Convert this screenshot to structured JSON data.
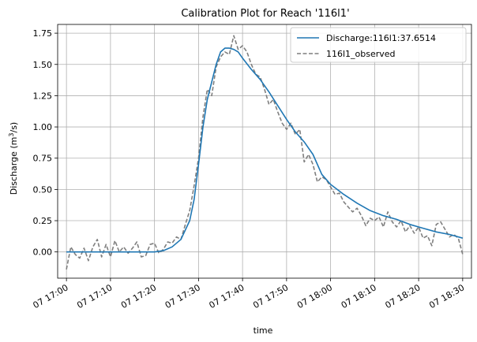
{
  "chart_data": {
    "type": "line",
    "title": "Calibration Plot for Reach '116l1'",
    "xlabel": "time",
    "ylabel_main": "Discharge (m",
    "ylabel_sup": "3",
    "ylabel_tail": "/s)",
    "xlim": [
      "07 16:58",
      "07 18:32"
    ],
    "ylim": [
      -0.21,
      1.82
    ],
    "x_ticks": [
      "07 17:00",
      "07 17:10",
      "07 17:20",
      "07 17:30",
      "07 17:40",
      "07 17:50",
      "07 18:00",
      "07 18:10",
      "07 18:20",
      "07 18:30"
    ],
    "y_ticks": [
      0.0,
      0.25,
      0.5,
      0.75,
      1.0,
      1.25,
      1.5,
      1.75
    ],
    "y_tick_labels": [
      "0.00",
      "0.25",
      "0.50",
      "0.75",
      "1.00",
      "1.25",
      "1.50",
      "1.75"
    ],
    "grid": true,
    "legend_position": "top-right",
    "series": [
      {
        "name": "Discharge:116l1:37.6514",
        "style": "solid",
        "color": "#1f77b4",
        "x": [
          "07 17:00",
          "07 17:05",
          "07 17:10",
          "07 17:15",
          "07 17:20",
          "07 17:22",
          "07 17:24",
          "07 17:26",
          "07 17:28",
          "07 17:29",
          "07 17:30",
          "07 17:31",
          "07 17:32",
          "07 17:33",
          "07 17:34",
          "07 17:35",
          "07 17:36",
          "07 17:37",
          "07 17:38",
          "07 17:39",
          "07 17:40",
          "07 17:42",
          "07 17:44",
          "07 17:46",
          "07 17:48",
          "07 17:50",
          "07 17:52",
          "07 17:54",
          "07 17:56",
          "07 17:58",
          "07 18:00",
          "07 18:03",
          "07 18:06",
          "07 18:09",
          "07 18:12",
          "07 18:15",
          "07 18:18",
          "07 18:21",
          "07 18:24",
          "07 18:27",
          "07 18:30"
        ],
        "y": [
          0.0,
          0.0,
          0.0,
          0.0,
          0.0,
          0.01,
          0.04,
          0.1,
          0.25,
          0.42,
          0.7,
          1.0,
          1.22,
          1.36,
          1.5,
          1.6,
          1.63,
          1.63,
          1.62,
          1.6,
          1.55,
          1.46,
          1.38,
          1.28,
          1.17,
          1.06,
          0.96,
          0.88,
          0.78,
          0.62,
          0.54,
          0.46,
          0.39,
          0.33,
          0.29,
          0.26,
          0.22,
          0.19,
          0.16,
          0.14,
          0.11
        ]
      },
      {
        "name": "116l1_observed",
        "style": "dashed",
        "color": "#7f7f7f",
        "x": [
          "07 17:00",
          "07 17:01",
          "07 17:02",
          "07 17:03",
          "07 17:04",
          "07 17:05",
          "07 17:06",
          "07 17:07",
          "07 17:08",
          "07 17:09",
          "07 17:10",
          "07 17:11",
          "07 17:12",
          "07 17:13",
          "07 17:14",
          "07 17:15",
          "07 17:16",
          "07 17:17",
          "07 17:18",
          "07 17:19",
          "07 17:20",
          "07 17:21",
          "07 17:22",
          "07 17:23",
          "07 17:24",
          "07 17:25",
          "07 17:26",
          "07 17:27",
          "07 17:28",
          "07 17:29",
          "07 17:30",
          "07 17:31",
          "07 17:32",
          "07 17:33",
          "07 17:34",
          "07 17:35",
          "07 17:36",
          "07 17:37",
          "07 17:38",
          "07 17:39",
          "07 17:40",
          "07 17:41",
          "07 17:42",
          "07 17:43",
          "07 17:44",
          "07 17:45",
          "07 17:46",
          "07 17:47",
          "07 17:48",
          "07 17:49",
          "07 17:50",
          "07 17:51",
          "07 17:52",
          "07 17:53",
          "07 17:54",
          "07 17:55",
          "07 17:56",
          "07 17:57",
          "07 17:58",
          "07 17:59",
          "07 18:00",
          "07 18:01",
          "07 18:02",
          "07 18:03",
          "07 18:04",
          "07 18:05",
          "07 18:06",
          "07 18:07",
          "07 18:08",
          "07 18:09",
          "07 18:10",
          "07 18:11",
          "07 18:12",
          "07 18:13",
          "07 18:14",
          "07 18:15",
          "07 18:16",
          "07 18:17",
          "07 18:18",
          "07 18:19",
          "07 18:20",
          "07 18:21",
          "07 18:22",
          "07 18:23",
          "07 18:24",
          "07 18:25",
          "07 18:26",
          "07 18:27",
          "07 18:28",
          "07 18:29",
          "07 18:30"
        ],
        "y": [
          -0.14,
          0.04,
          -0.02,
          -0.05,
          0.03,
          -0.07,
          0.04,
          0.1,
          -0.04,
          0.06,
          -0.04,
          0.09,
          0.0,
          0.04,
          -0.01,
          0.03,
          0.08,
          -0.04,
          -0.03,
          0.06,
          0.07,
          -0.01,
          0.02,
          0.08,
          0.07,
          0.12,
          0.1,
          0.22,
          0.33,
          0.53,
          0.75,
          1.08,
          1.3,
          1.25,
          1.48,
          1.56,
          1.6,
          1.58,
          1.73,
          1.62,
          1.65,
          1.6,
          1.5,
          1.42,
          1.4,
          1.3,
          1.18,
          1.22,
          1.12,
          1.03,
          0.98,
          1.03,
          0.94,
          0.98,
          0.72,
          0.78,
          0.7,
          0.56,
          0.6,
          0.58,
          0.52,
          0.46,
          0.47,
          0.4,
          0.36,
          0.32,
          0.35,
          0.29,
          0.21,
          0.27,
          0.25,
          0.28,
          0.2,
          0.32,
          0.24,
          0.2,
          0.25,
          0.16,
          0.21,
          0.15,
          0.2,
          0.11,
          0.13,
          0.05,
          0.22,
          0.24,
          0.18,
          0.12,
          0.14,
          0.11,
          -0.02
        ]
      }
    ]
  }
}
